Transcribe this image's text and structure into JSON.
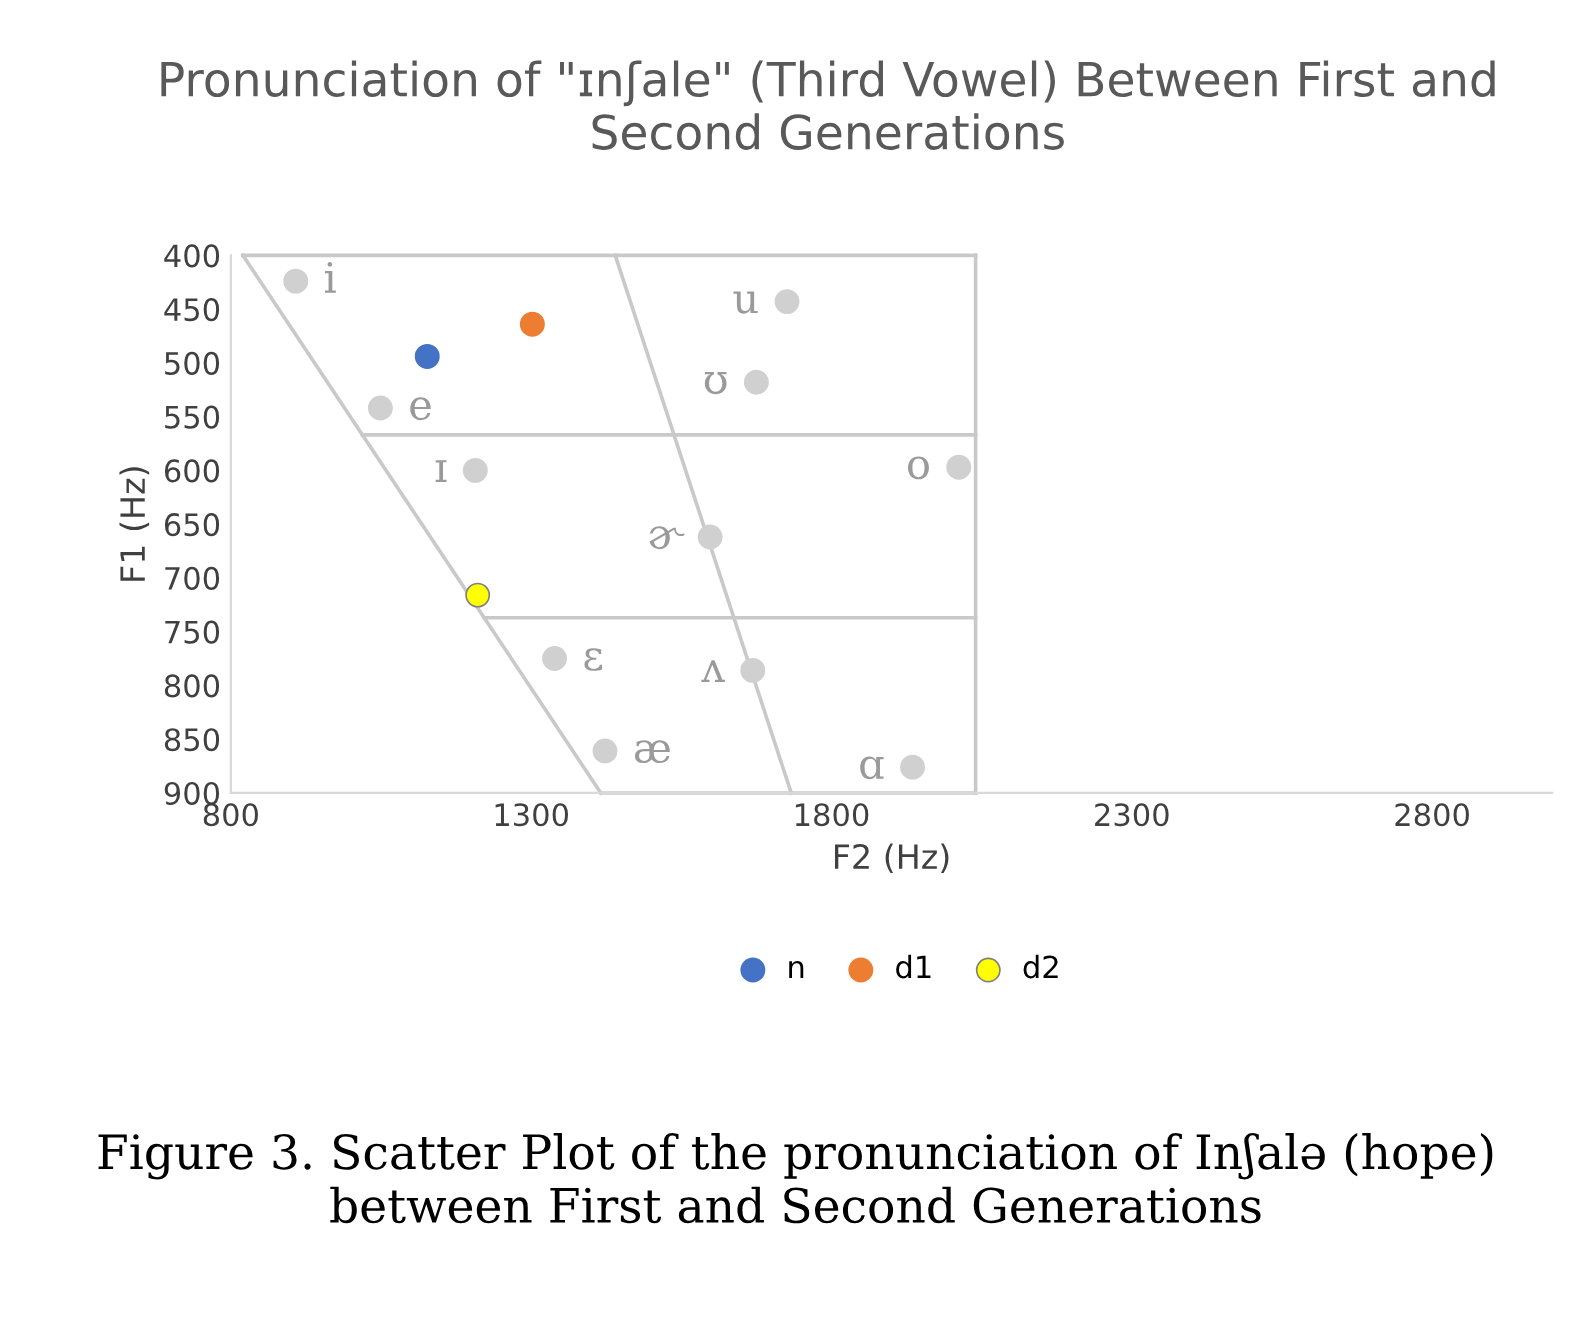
{
  "chart_data": {
    "type": "scatter",
    "title": "Pronunciation of \"ɪnʃale\" (Third Vowel) Between First and Second Generations",
    "xlabel": "F2 (Hz)",
    "ylabel": "F1 (Hz)",
    "xlim": [
      800,
      3000
    ],
    "xticks": [
      800,
      1300,
      1800,
      2300,
      2800
    ],
    "ylim": [
      900,
      400
    ],
    "yticks": [
      400,
      450,
      500,
      550,
      600,
      650,
      700,
      750,
      800,
      850,
      900
    ],
    "grid": false,
    "legend": "bottom",
    "marker": "circle",
    "series": [
      {
        "type": "line",
        "marker": "none",
        "color": "#c9c9c9",
        "x": [
          820,
          1416
        ],
        "values": [
          400,
          900
        ]
      },
      {
        "type": "line",
        "marker": "none",
        "color": "#c9c9c9",
        "x": [
          820,
          2040
        ],
        "values": [
          400,
          400
        ]
      },
      {
        "type": "line",
        "marker": "none",
        "color": "#c9c9c9",
        "x": [
          2040,
          2040
        ],
        "values": [
          400,
          900
        ]
      },
      {
        "type": "line",
        "marker": "none",
        "color": "#c9c9c9",
        "x": [
          1416,
          2040
        ],
        "values": [
          900,
          900
        ]
      },
      {
        "type": "line",
        "marker": "none",
        "color": "#c9c9c9",
        "x": [
          1440,
          1733
        ],
        "values": [
          400,
          900
        ]
      },
      {
        "type": "line",
        "marker": "none",
        "color": "#c9c9c9",
        "x": [
          1019,
          2040
        ],
        "values": [
          567,
          567
        ]
      },
      {
        "type": "line",
        "marker": "none",
        "color": "#c9c9c9",
        "x": [
          1222,
          2040
        ],
        "values": [
          737,
          737
        ]
      },
      {
        "color": "#d0d0d0",
        "x": [
          908,
          1726,
          1675,
          1049,
          1207,
          2012,
          1598,
          1339,
          1669,
          1423,
          1935
        ],
        "values": [
          424,
          443,
          518,
          542,
          600,
          597,
          662,
          775,
          786,
          861,
          876
        ]
      },
      {
        "name": "n",
        "color": "#4472c4",
        "x": [
          1127
        ],
        "values": [
          494
        ]
      },
      {
        "name": "d1",
        "color": "#ed7d31",
        "x": [
          1302
        ],
        "values": [
          464
        ]
      },
      {
        "name": "d2",
        "color": "#ffff00",
        "x": [
          1211
        ],
        "values": [
          716
        ]
      }
    ],
    "annotations": [
      {
        "text": "i",
        "x": 908,
        "y": 424
      },
      {
        "text": "u",
        "x": 1726,
        "y": 443
      },
      {
        "text": "ʊ",
        "x": 1675,
        "y": 518
      },
      {
        "text": "e",
        "x": 1049,
        "y": 542
      },
      {
        "text": "ɪ",
        "x": 1207,
        "y": 600
      },
      {
        "text": "o",
        "x": 2012,
        "y": 597
      },
      {
        "text": "ɚ",
        "x": 1598,
        "y": 662
      },
      {
        "text": "ɛ",
        "x": 1339,
        "y": 775
      },
      {
        "text": "ʌ",
        "x": 1669,
        "y": 786
      },
      {
        "text": "æ",
        "x": 1423,
        "y": 861
      },
      {
        "text": "ɑ",
        "x": 1935,
        "y": 876
      },
      "Figure 3. Scatter Plot of the pronunciation of Inʃalə (hope) between First and Second Generations"
    ]
  }
}
